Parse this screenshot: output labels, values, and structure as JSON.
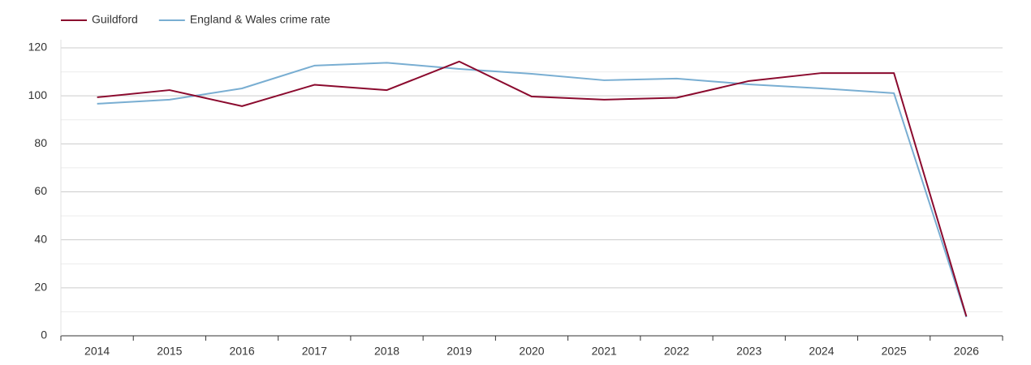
{
  "chart_data": {
    "type": "line",
    "categories": [
      "2014",
      "2015",
      "2016",
      "2017",
      "2018",
      "2019",
      "2020",
      "2021",
      "2022",
      "2023",
      "2024",
      "2025",
      "2026"
    ],
    "series": [
      {
        "name": "Guildford",
        "color": "#8b0a2e",
        "values": [
          99.4,
          102.4,
          95.7,
          104.6,
          102.4,
          114.3,
          99.7,
          98.4,
          99.2,
          106.2,
          109.5,
          109.5,
          8.1
        ]
      },
      {
        "name": "England & Wales crime rate",
        "color": "#79aed2",
        "values": [
          96.7,
          98.4,
          103.1,
          112.6,
          113.8,
          111.2,
          109.2,
          106.5,
          107.2,
          104.8,
          103.1,
          101.1,
          7.8
        ]
      }
    ],
    "ylim": [
      0,
      120
    ],
    "yticks": [
      0,
      20,
      40,
      60,
      80,
      100,
      120
    ],
    "grid": true,
    "legend": "top-left"
  }
}
